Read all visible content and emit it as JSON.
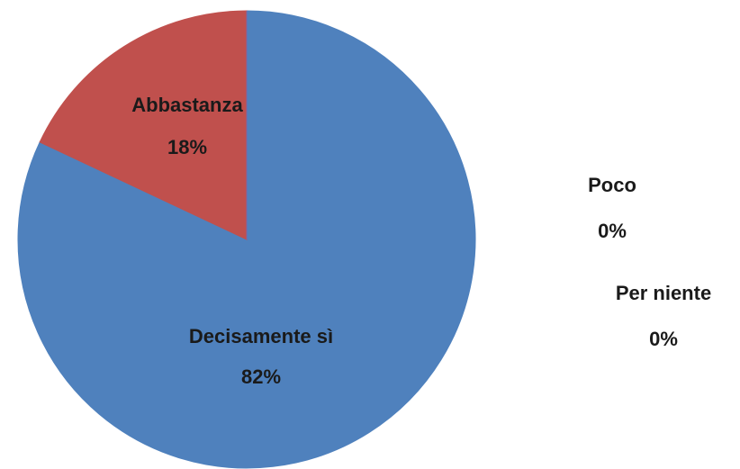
{
  "chart_data": {
    "type": "pie",
    "categories": [
      "Decisamente sì",
      "Abbastanza",
      "Poco",
      "Per niente"
    ],
    "values": [
      82,
      18,
      0,
      0
    ],
    "value_labels": [
      "82%",
      "18%",
      "0%",
      "0%"
    ],
    "colors": [
      "#4f81bd",
      "#c0504d",
      "#9bbb59",
      "#8064a2"
    ]
  }
}
